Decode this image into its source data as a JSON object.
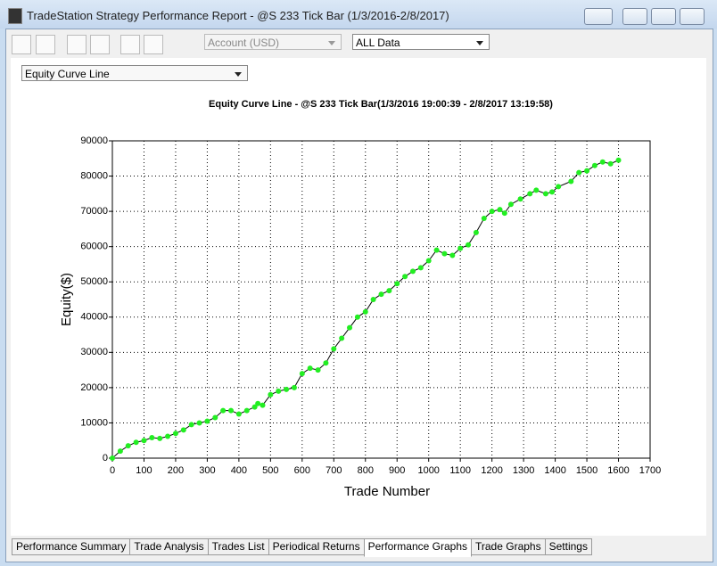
{
  "window": {
    "title": "TradeStation Strategy Performance Report - @S 233 Tick Bar (1/3/2016-2/8/2017)"
  },
  "toolbar": {
    "account": "Account (USD)",
    "range": "ALL Data"
  },
  "view_select": "Equity Curve Line",
  "tabs": [
    "Performance Summary",
    "Trade Analysis",
    "Trades List",
    "Periodical Returns",
    "Performance Graphs",
    "Trade Graphs",
    "Settings"
  ],
  "chart_data": {
    "type": "line",
    "title": "Equity Curve Line - @S 233 Tick Bar(1/3/2016 19:00:39 - 2/8/2017 13:19:58)",
    "x_label": "Trade Number",
    "y_label": "Equity($)",
    "x": [
      0,
      25,
      50,
      75,
      100,
      125,
      150,
      175,
      200,
      225,
      250,
      275,
      300,
      325,
      350,
      375,
      400,
      425,
      450,
      460,
      475,
      500,
      525,
      550,
      575,
      600,
      625,
      650,
      675,
      700,
      725,
      750,
      775,
      800,
      825,
      850,
      875,
      900,
      925,
      950,
      975,
      1000,
      1025,
      1050,
      1075,
      1100,
      1125,
      1150,
      1175,
      1200,
      1225,
      1240,
      1260,
      1290,
      1320,
      1340,
      1370,
      1390,
      1410,
      1450,
      1475,
      1500,
      1525,
      1550,
      1575,
      1600
    ],
    "values": [
      0,
      2000,
      3500,
      4500,
      5000,
      5800,
      5600,
      6200,
      7000,
      8000,
      9500,
      10000,
      10500,
      11500,
      13500,
      13500,
      12500,
      13500,
      14500,
      15500,
      15000,
      18000,
      19000,
      19500,
      20000,
      24000,
      25500,
      25000,
      27000,
      31000,
      34000,
      37000,
      40000,
      41500,
      45000,
      46500,
      47500,
      49500,
      51500,
      53000,
      54000,
      56000,
      59000,
      58000,
      57500,
      59500,
      60500,
      64000,
      68000,
      70000,
      70500,
      69500,
      72000,
      73500,
      75000,
      76000,
      75000,
      75500,
      77000,
      78500,
      81000,
      81500,
      83000,
      84000,
      83500,
      84500
    ],
    "color": "#000000",
    "marker_color": "#22ee22",
    "xlim": [
      0,
      1700
    ],
    "xticks": [
      0,
      100,
      200,
      300,
      400,
      500,
      600,
      700,
      800,
      900,
      1000,
      1100,
      1200,
      1300,
      1400,
      1500,
      1600,
      1700
    ],
    "ylim": [
      0,
      90000
    ],
    "yticks": [
      0,
      10000,
      20000,
      30000,
      40000,
      50000,
      60000,
      70000,
      80000,
      90000
    ],
    "grid": true
  }
}
